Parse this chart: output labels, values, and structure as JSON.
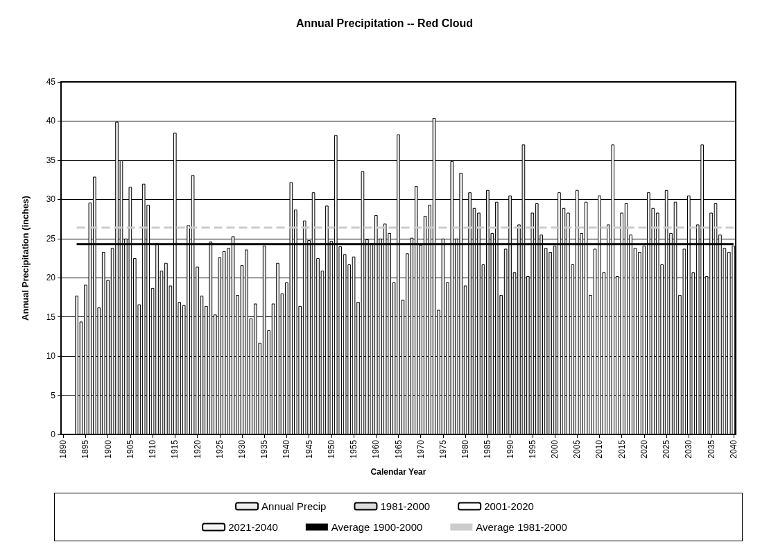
{
  "chart_data": {
    "type": "bar",
    "title": "Annual Precipitation -- Red Cloud",
    "xlabel": "Calendar Year",
    "ylabel": "Annual Precipitation (inches)",
    "xlim": [
      1889.5,
      2040.5
    ],
    "xticks": [
      1890,
      1895,
      1900,
      1905,
      1910,
      1915,
      1920,
      1925,
      1930,
      1935,
      1940,
      1945,
      1950,
      1955,
      1960,
      1965,
      1970,
      1975,
      1980,
      1985,
      1990,
      1995,
      2000,
      2005,
      2010,
      2015,
      2020,
      2025,
      2030,
      2035,
      2040
    ],
    "ylim": [
      0,
      45
    ],
    "yticks": [
      0,
      5,
      10,
      15,
      20,
      25,
      30,
      35,
      40,
      45
    ],
    "grid": "y",
    "legend": "bottom",
    "series": [
      {
        "name": "Annual Precip",
        "color": "#eeeeee",
        "x": [
          1893,
          1894,
          1895,
          1896,
          1897,
          1898,
          1899,
          1900,
          1901,
          1902,
          1903,
          1904,
          1905,
          1906,
          1907,
          1908,
          1909,
          1910,
          1911,
          1912,
          1913,
          1914,
          1915,
          1916,
          1917,
          1918,
          1919,
          1920,
          1921,
          1922,
          1923,
          1924,
          1925,
          1926,
          1927,
          1928,
          1929,
          1930,
          1931,
          1932,
          1933,
          1934,
          1935,
          1936,
          1937,
          1938,
          1939,
          1940,
          1941,
          1942,
          1943,
          1944,
          1945,
          1946,
          1947,
          1948,
          1949,
          1950,
          1951,
          1952,
          1953,
          1954,
          1955,
          1956,
          1957,
          1958,
          1959,
          1960,
          1961,
          1962,
          1963,
          1964,
          1965,
          1966,
          1967,
          1968,
          1969,
          1970,
          1971,
          1972,
          1973,
          1974,
          1975,
          1976,
          1977,
          1978,
          1979,
          1980
        ],
        "values": [
          17.7,
          14.4,
          19.1,
          29.6,
          32.9,
          16.2,
          23.3,
          19.7,
          23.8,
          39.9,
          35.0,
          25.0,
          31.6,
          22.5,
          16.6,
          32.0,
          29.3,
          18.7,
          24.4,
          20.9,
          21.9,
          19.0,
          38.5,
          16.9,
          16.5,
          26.7,
          33.1,
          21.4,
          17.7,
          16.4,
          24.6,
          15.3,
          22.6,
          23.4,
          23.8,
          25.3,
          17.8,
          21.6,
          23.6,
          14.8,
          16.7,
          11.7,
          24.1,
          13.3,
          16.7,
          21.9,
          18.0,
          19.4,
          32.2,
          28.7,
          16.4,
          27.3,
          24.8,
          30.9,
          22.5,
          20.9,
          29.2,
          24.7,
          38.2,
          24.0,
          23.0,
          21.7,
          22.7,
          16.9,
          33.6,
          24.9,
          24.4,
          28.0,
          25.0,
          26.9,
          25.7,
          19.4,
          38.3,
          17.2,
          23.1,
          25.1,
          31.7,
          24.2,
          27.9,
          29.3,
          40.4,
          15.9,
          25.0,
          19.4,
          34.9,
          25.0,
          33.4,
          19.0
        ]
      },
      {
        "name": "1981-2000",
        "color": "#dcdcdc",
        "x": [
          1981,
          1982,
          1983,
          1984,
          1985,
          1986,
          1987,
          1988,
          1989,
          1990,
          1991,
          1992,
          1993,
          1994,
          1995,
          1996,
          1997,
          1998,
          1999,
          2000
        ],
        "values": [
          30.9,
          28.9,
          28.3,
          21.7,
          31.2,
          25.7,
          29.7,
          17.8,
          23.7,
          30.5,
          20.7,
          26.8,
          37.0,
          20.2,
          28.3,
          29.5,
          25.5,
          23.8,
          23.3,
          24.1
        ]
      },
      {
        "name": "2001-2020",
        "color": "#ffffff",
        "x": [
          2001,
          2002,
          2003,
          2004,
          2005,
          2006,
          2007,
          2008,
          2009,
          2010,
          2011,
          2012,
          2013,
          2014,
          2015,
          2016,
          2017,
          2018,
          2019,
          2020
        ],
        "values": [
          30.9,
          28.9,
          28.3,
          21.7,
          31.2,
          25.7,
          29.7,
          17.8,
          23.7,
          30.5,
          20.7,
          26.8,
          37.0,
          20.2,
          28.3,
          29.5,
          25.5,
          23.8,
          23.3,
          24.1
        ]
      },
      {
        "name": "2021-2040",
        "color": "#f5f5f5",
        "x": [
          2021,
          2022,
          2023,
          2024,
          2025,
          2026,
          2027,
          2028,
          2029,
          2030,
          2031,
          2032,
          2033,
          2034,
          2035,
          2036,
          2037,
          2038,
          2039,
          2040
        ],
        "values": [
          30.9,
          28.9,
          28.3,
          21.7,
          31.2,
          25.7,
          29.7,
          17.8,
          23.7,
          30.5,
          20.7,
          26.8,
          37.0,
          20.2,
          28.3,
          29.5,
          25.5,
          23.8,
          23.3,
          24.1
        ]
      },
      {
        "name": "Average 1900-2000",
        "type": "line",
        "color": "#000000",
        "line_style": "solid",
        "x": [
          1893,
          2040
        ],
        "values": [
          24.3,
          24.3
        ]
      },
      {
        "name": "Average 1981-2000",
        "type": "line",
        "color": "#cccccc",
        "line_style": "dashed",
        "x": [
          1893,
          2040
        ],
        "values": [
          26.4,
          26.4
        ]
      }
    ]
  }
}
